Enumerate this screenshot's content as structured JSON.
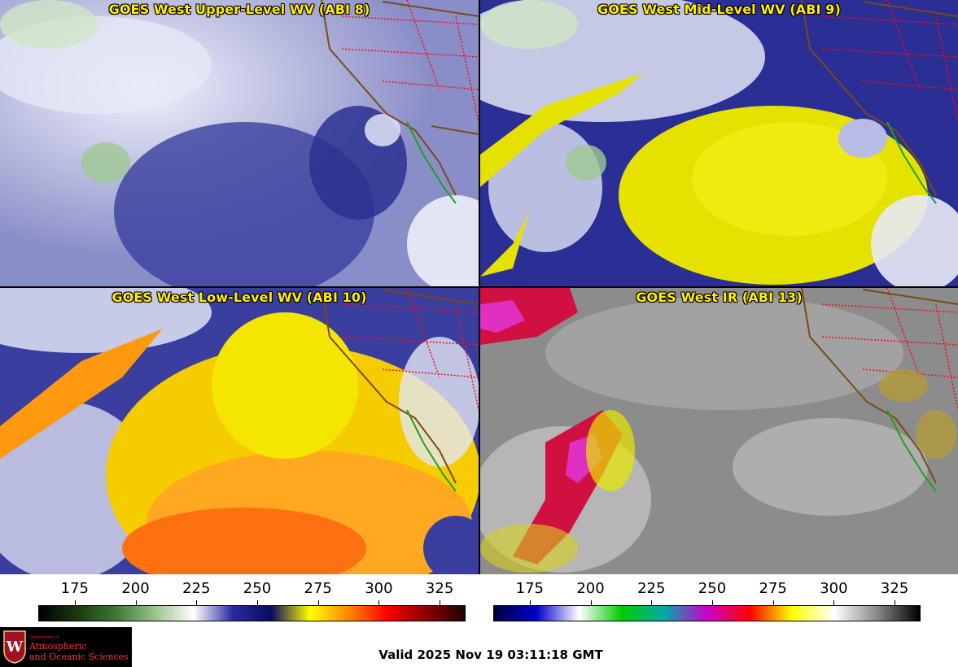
{
  "panels": {
    "upper": {
      "title": "GOES West Upper-Level WV (ABI 8)"
    },
    "mid": {
      "title": "GOES West Mid-Level WV (ABI 9)"
    },
    "low": {
      "title": "GOES West Low-Level WV (ABI 10)"
    },
    "ir": {
      "title": "GOES West IR (ABI 13)"
    }
  },
  "colorbars": {
    "wv": {
      "ticks": [
        "175",
        "200",
        "225",
        "250",
        "275",
        "300",
        "325"
      ],
      "colors": [
        "#000000",
        "#1a3a12",
        "#3d7a30",
        "#9ac48e",
        "#ffffff",
        "#2a2aa0",
        "#0a0a60",
        "#ffff00",
        "#ff8800",
        "#ff0000",
        "#8a0000",
        "#200000"
      ]
    },
    "ir": {
      "ticks": [
        "175",
        "200",
        "225",
        "250",
        "275",
        "300",
        "325"
      ],
      "colors": [
        "#000040",
        "#0000cc",
        "#ffffff",
        "#00cc00",
        "#00aaaa",
        "#cc00cc",
        "#ff0000",
        "#ffff00",
        "#ffffff",
        "#888888",
        "#000000"
      ]
    }
  },
  "logo": {
    "dept": "Department of",
    "line1": "Atmospheric",
    "line2": "and Oceanic Sciences",
    "seal_letter": "W"
  },
  "valid_time": "Valid 2025 Nov 19 03:11:18 GMT"
}
